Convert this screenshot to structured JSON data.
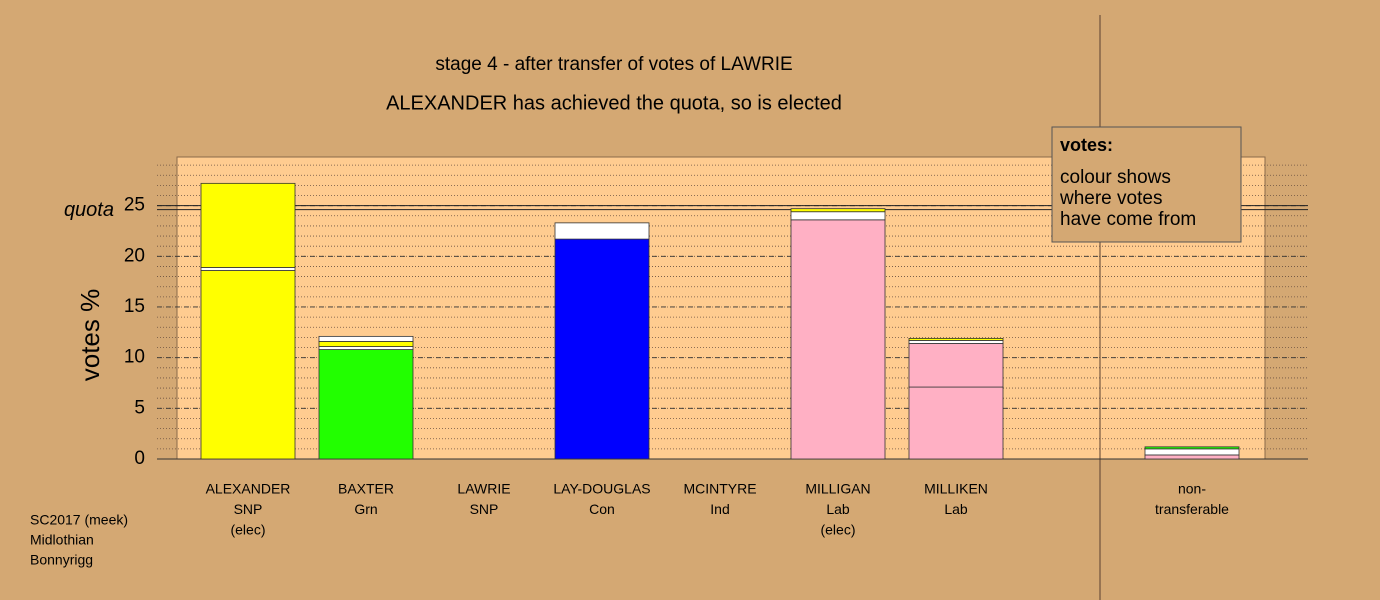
{
  "chart_data": {
    "type": "stacked-bar",
    "title": "stage 4 - after transfer of votes of LAWRIE",
    "subtitle": "ALEXANDER has achieved the quota, so is elected",
    "ylabel": "votes %",
    "quota": {
      "label": "quota",
      "value": 24.8
    },
    "ylim": [
      0,
      29.8
    ],
    "yticks": [
      0,
      5,
      10,
      15,
      20,
      25
    ],
    "minor_grid_step": 1,
    "categories": [
      {
        "lines": [
          "ALEXANDER",
          "SNP",
          "(elec)"
        ],
        "segments": [
          {
            "value": 18.6,
            "color": "#ffff00"
          },
          {
            "value": 0.3,
            "color": "#ffffff"
          },
          {
            "value": 8.3,
            "color": "#ffff00"
          }
        ]
      },
      {
        "lines": [
          "BAXTER",
          "Grn"
        ],
        "segments": [
          {
            "value": 10.8,
            "color": "#22ff00"
          },
          {
            "value": 0.3,
            "color": "#ffffff"
          },
          {
            "value": 0.5,
            "color": "#ffff00"
          },
          {
            "value": 0.5,
            "color": "#ffffff"
          }
        ]
      },
      {
        "lines": [
          "LAWRIE",
          "SNP"
        ],
        "segments": []
      },
      {
        "lines": [
          "LAY-DOUGLAS",
          "Con"
        ],
        "segments": [
          {
            "value": 21.7,
            "color": "#0000ff"
          },
          {
            "value": 1.6,
            "color": "#ffffff"
          }
        ]
      },
      {
        "lines": [
          "MCINTYRE",
          "Ind"
        ],
        "segments": []
      },
      {
        "lines": [
          "MILLIGAN",
          "Lab",
          "(elec)"
        ],
        "segments": [
          {
            "value": 23.6,
            "color": "#ffb0c4"
          },
          {
            "value": 0.8,
            "color": "#ffffff"
          },
          {
            "value": 0.3,
            "color": "#ffff00"
          }
        ]
      },
      {
        "lines": [
          "MILLIKEN",
          "Lab"
        ],
        "segments": [
          {
            "value": 7.1,
            "color": "#ffb0c4"
          },
          {
            "value": 4.3,
            "color": "#ffb0c4"
          },
          {
            "value": 0.3,
            "color": "#ffffff"
          },
          {
            "value": 0.2,
            "color": "#ffff00"
          }
        ]
      },
      {
        "lines": [
          "non-",
          "transferable"
        ],
        "segments": [
          {
            "value": 0.4,
            "color": "#ffb0c4"
          },
          {
            "value": 0.6,
            "color": "#ffffff"
          },
          {
            "value": 0.2,
            "color": "#22ff00"
          }
        ]
      }
    ],
    "legend": {
      "title": "votes:",
      "lines": [
        "colour shows",
        "where votes",
        "have come from"
      ]
    },
    "footnote": [
      "SC2017 (meek)",
      "Midlothian",
      "Bonnyrigg"
    ]
  }
}
